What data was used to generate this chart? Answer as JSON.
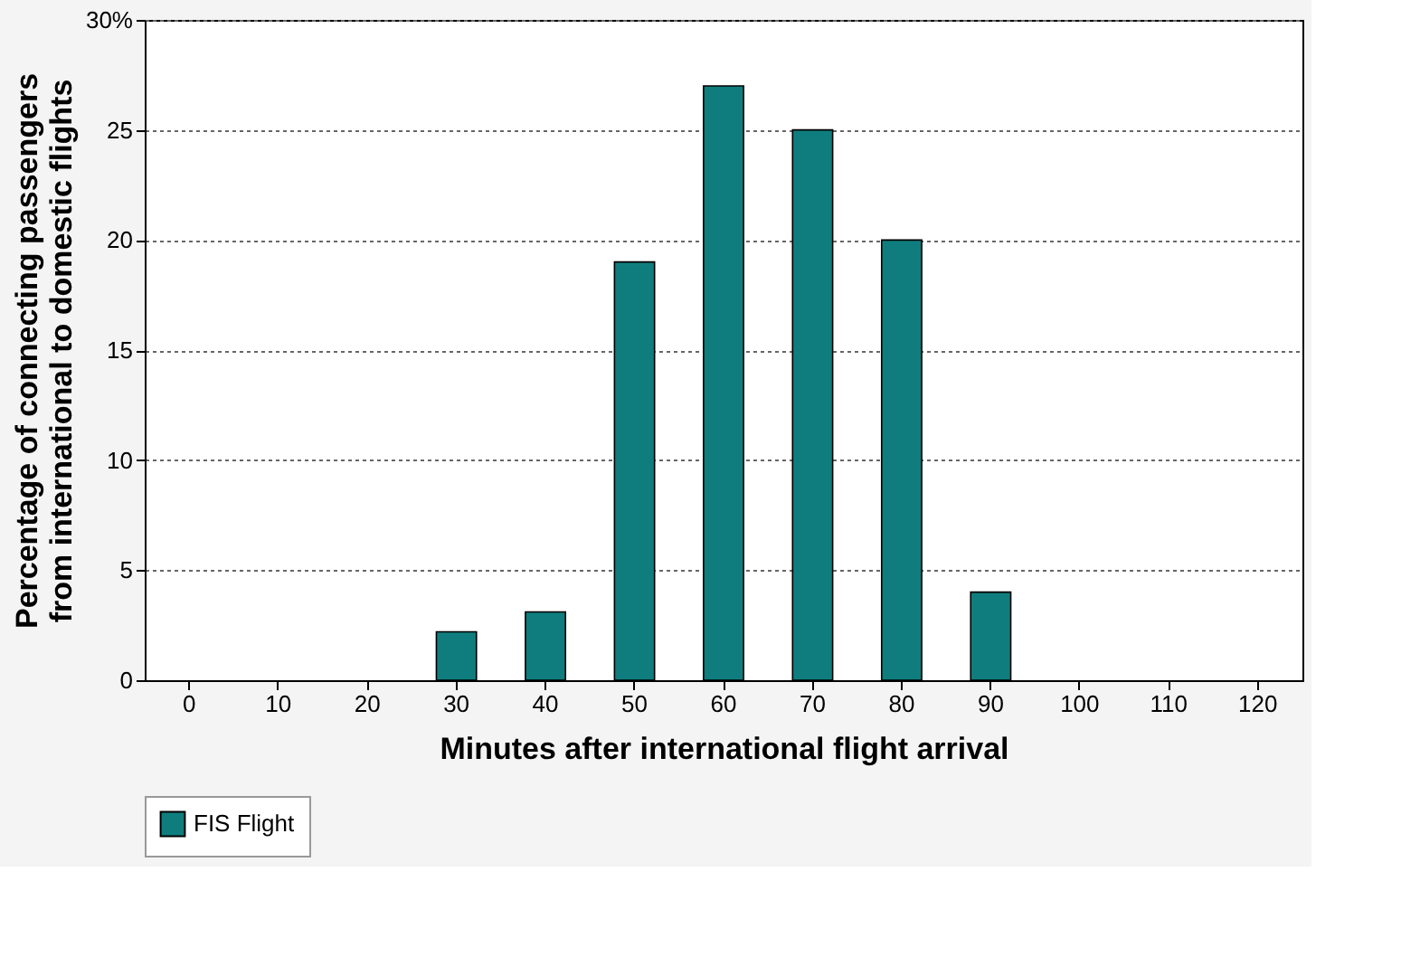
{
  "chart_data": {
    "type": "bar",
    "xlabel": "Minutes after international flight arrival",
    "ylabel": "Percentage of connecting passengers\nfrom international to domestic flights",
    "categories": [
      "0",
      "10",
      "20",
      "30",
      "40",
      "50",
      "60",
      "70",
      "80",
      "90",
      "100",
      "110",
      "120"
    ],
    "series": [
      {
        "name": "FIS Flight",
        "color": "#0f7d7d",
        "values": [
          null,
          null,
          null,
          2.2,
          3.1,
          19,
          27,
          25,
          20,
          4,
          null,
          null,
          null
        ]
      }
    ],
    "ylim": [
      0,
      30
    ],
    "yticks": [
      0,
      5,
      10,
      15,
      20,
      25,
      {
        "value": 30,
        "label": "30%"
      }
    ],
    "grid": "y",
    "legend": "bottom"
  }
}
